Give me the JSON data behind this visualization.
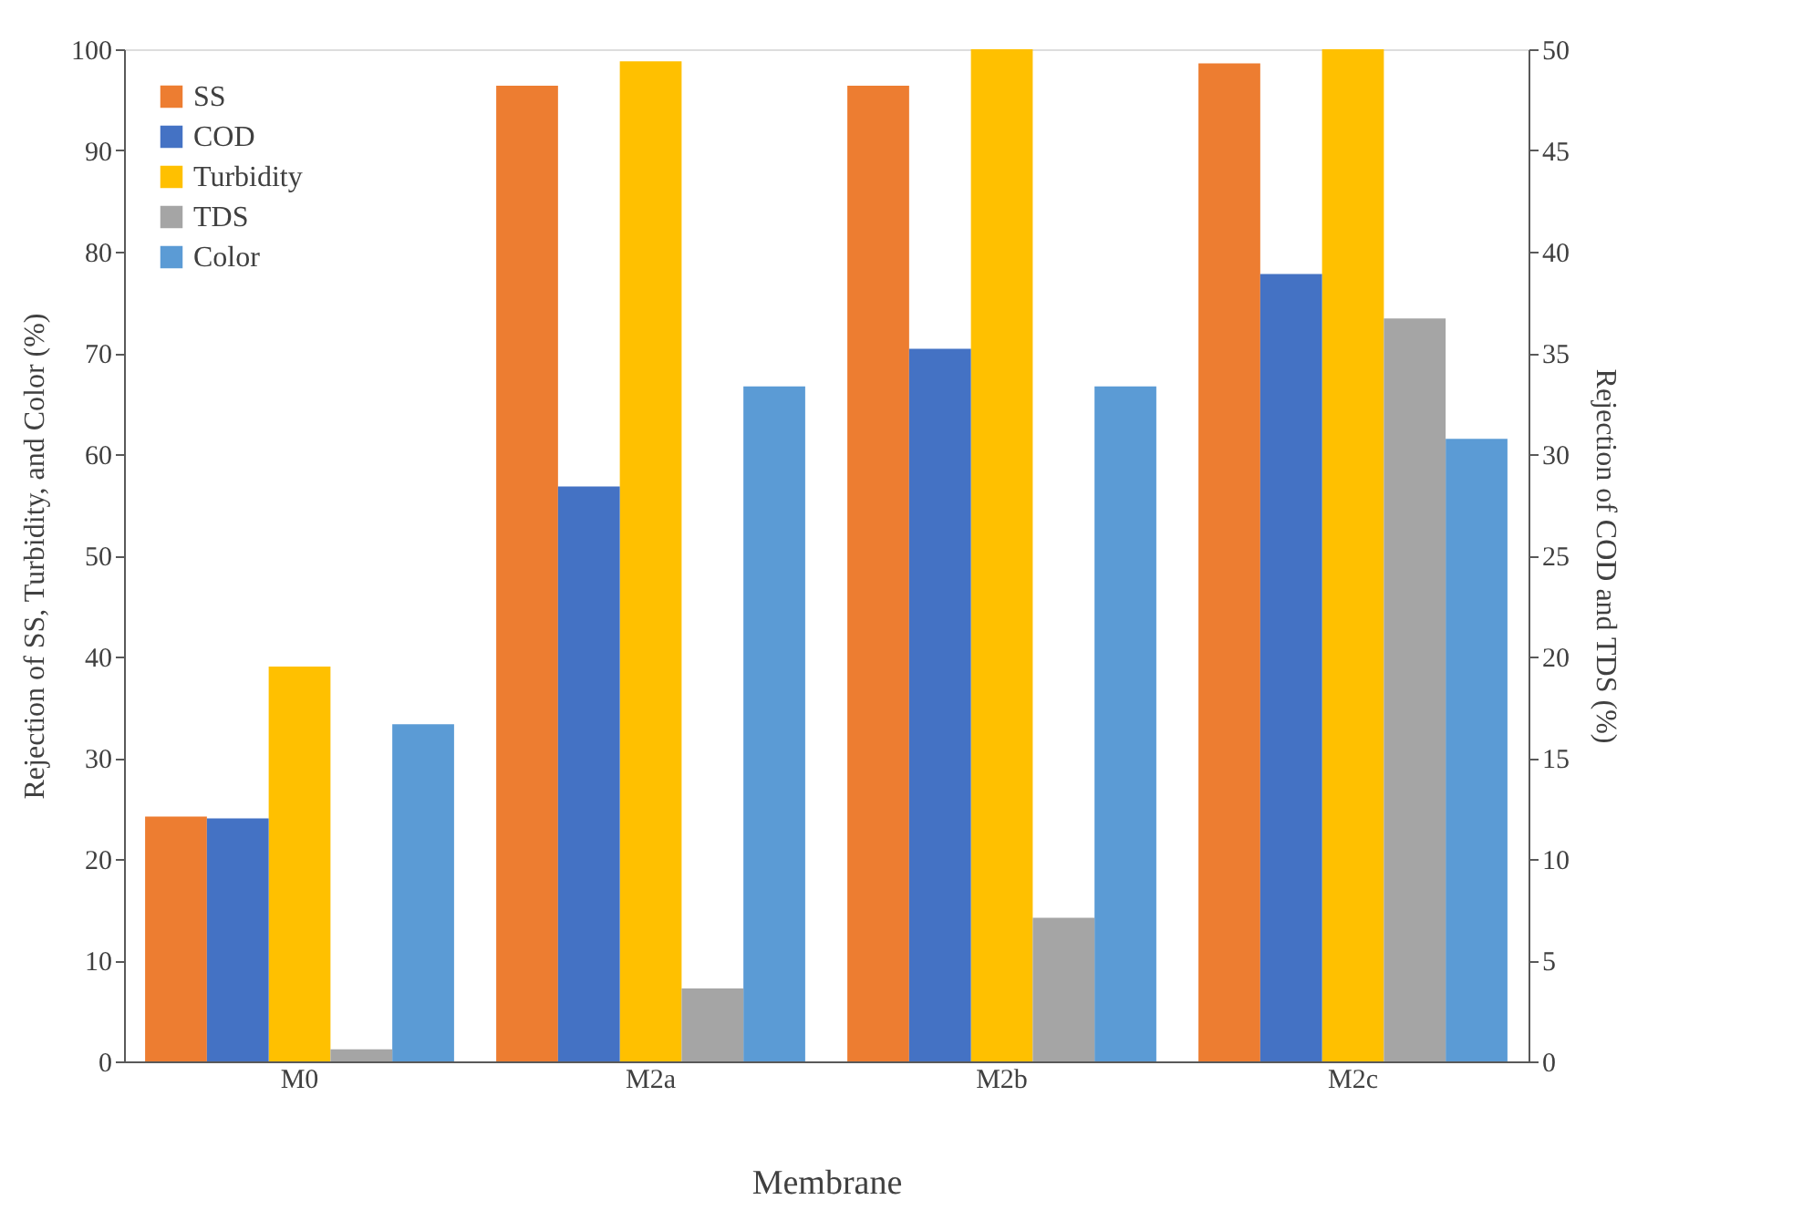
{
  "chart_data": {
    "type": "bar",
    "xlabel": "Membrane",
    "ylabel": "Rejection of SS, Turbidity, and Color (%)",
    "y2label": "Rejection of  COD and TDS (%)",
    "categories": [
      "M0",
      "M2a",
      "M2b",
      "M2c"
    ],
    "series": [
      {
        "name": "SS",
        "color": "#ed7d31",
        "values": [
          24.2,
          96.4,
          96.4,
          98.6
        ]
      },
      {
        "name": "COD",
        "color": "#4472c4",
        "axis": "y2",
        "values": [
          12.0,
          28.4,
          35.2,
          38.9
        ]
      },
      {
        "name": "Turbidity",
        "color": "#ffc000",
        "values": [
          39.0,
          98.8,
          100,
          100
        ]
      },
      {
        "name": "TDS",
        "color": "#a5a5a5",
        "axis": "y2",
        "values": [
          0.6,
          3.6,
          7.1,
          36.7
        ]
      },
      {
        "name": "Color",
        "color": "#5b9bd5",
        "values": [
          33.3,
          66.7,
          66.7,
          61.5
        ]
      }
    ],
    "ylim": [
      0,
      100
    ],
    "yticks": [
      0,
      10,
      20,
      30,
      40,
      50,
      60,
      70,
      80,
      90,
      100
    ],
    "y2lim": [
      0,
      50
    ],
    "y2ticks": [
      0,
      5,
      10,
      15,
      20,
      25,
      30,
      35,
      40,
      45,
      50
    ],
    "grid": false,
    "legend": "top left"
  }
}
